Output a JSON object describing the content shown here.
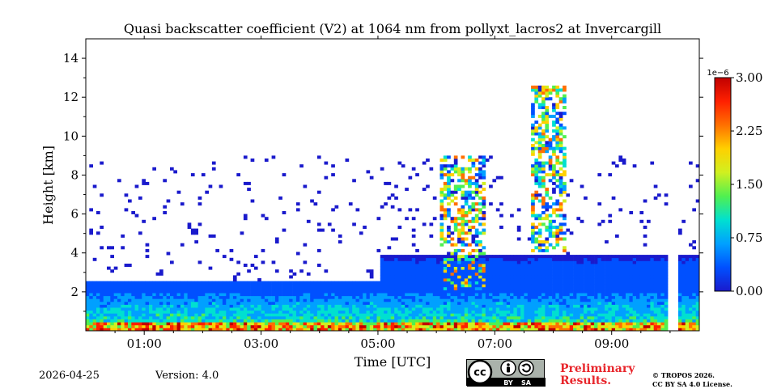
{
  "chart_data": {
    "type": "heatmap",
    "title": "Quasi backscatter coefficient (V2) at 1064 nm from pollyxt_lacros2 at Invercargill",
    "xlabel": "Time [UTC]",
    "ylabel": "Height [km]",
    "xlim_hours": [
      0.0,
      10.5
    ],
    "ylim_km": [
      0,
      15
    ],
    "x_ticks": [
      {
        "value": 1,
        "label": "01:00"
      },
      {
        "value": 3,
        "label": "03:00"
      },
      {
        "value": 5,
        "label": "05:00"
      },
      {
        "value": 7,
        "label": "07:00"
      },
      {
        "value": 9,
        "label": "09:00"
      }
    ],
    "y_ticks": [
      {
        "value": 2,
        "label": "2"
      },
      {
        "value": 4,
        "label": "4"
      },
      {
        "value": 6,
        "label": "6"
      },
      {
        "value": 8,
        "label": "8"
      },
      {
        "value": 10,
        "label": "10"
      },
      {
        "value": 12,
        "label": "12"
      },
      {
        "value": 14,
        "label": "14"
      }
    ],
    "colorbar": {
      "range": [
        0.0,
        3.0
      ],
      "multiplier_label": "1e−6",
      "ticks": [
        {
          "value": 0.0,
          "label": "0.00"
        },
        {
          "value": 0.75,
          "label": "0.75"
        },
        {
          "value": 1.5,
          "label": "1.50"
        },
        {
          "value": 2.25,
          "label": "2.25"
        },
        {
          "value": 3.0,
          "label": "3.00"
        }
      ],
      "colormap": [
        "#1a1acc",
        "#0050ff",
        "#00a0ff",
        "#00e0d0",
        "#50f050",
        "#d0f020",
        "#ffd000",
        "#ff7000",
        "#ff2000",
        "#c00000"
      ]
    },
    "features": [
      {
        "name": "boundary layer",
        "t_start": 0.0,
        "t_end": 10.5,
        "top_km": 2.5,
        "peak_value": 1.2
      },
      {
        "name": "near-surface layer",
        "t_start": 0.0,
        "t_end": 10.5,
        "top_km": 0.3,
        "peak_value": 3.0
      },
      {
        "name": "aerosol layer",
        "t_start": 5.0,
        "t_end": 10.5,
        "top_km": 3.8,
        "peak_value": 0.3
      },
      {
        "name": "cloud",
        "t_start": 6.0,
        "t_end": 6.8,
        "base_km": 2.0,
        "top_km": 9.0,
        "peak_value": 2.5
      },
      {
        "name": "cloud",
        "t_start": 7.6,
        "t_end": 8.2,
        "base_km": 4.0,
        "top_km": 12.5,
        "peak_value": 2.5
      }
    ],
    "data_gaps": [
      {
        "t_start": 8.92,
        "t_end": 8.95
      },
      {
        "t_start": 9.95,
        "t_end": 10.15
      }
    ]
  },
  "footer": {
    "date": "2026-04-25",
    "version": "Version: 4.0",
    "license_badge": {
      "cc": "cc",
      "by": "BY",
      "sa": "SA"
    },
    "preliminary_line1": "Preliminary",
    "preliminary_line2": "Results.",
    "copyright_line1": "© TROPOS 2026.",
    "copyright_line2": "CC BY SA 4.0 License."
  }
}
